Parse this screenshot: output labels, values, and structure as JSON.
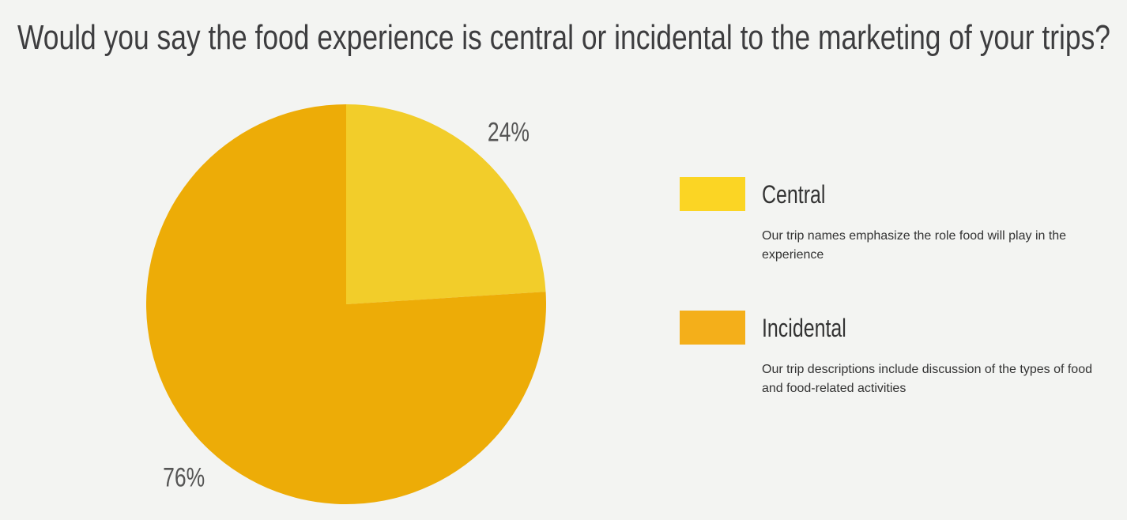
{
  "chart_data": {
    "type": "pie",
    "title": "Would you say the food experience is central or incidental to the marketing of your trips?",
    "categories": [
      "Central",
      "Incidental"
    ],
    "values": [
      24,
      76
    ],
    "value_labels": [
      "24%",
      "76%"
    ],
    "colors": [
      "#f2cd2a",
      "#edac07"
    ],
    "legend_colors": [
      "#fbd524",
      "#f4af1a"
    ],
    "descriptions": [
      "Our trip names emphasize the role food will play in the experience",
      "Our trip descriptions include discussion of the types of food and food-related activities"
    ],
    "legend": "right"
  }
}
